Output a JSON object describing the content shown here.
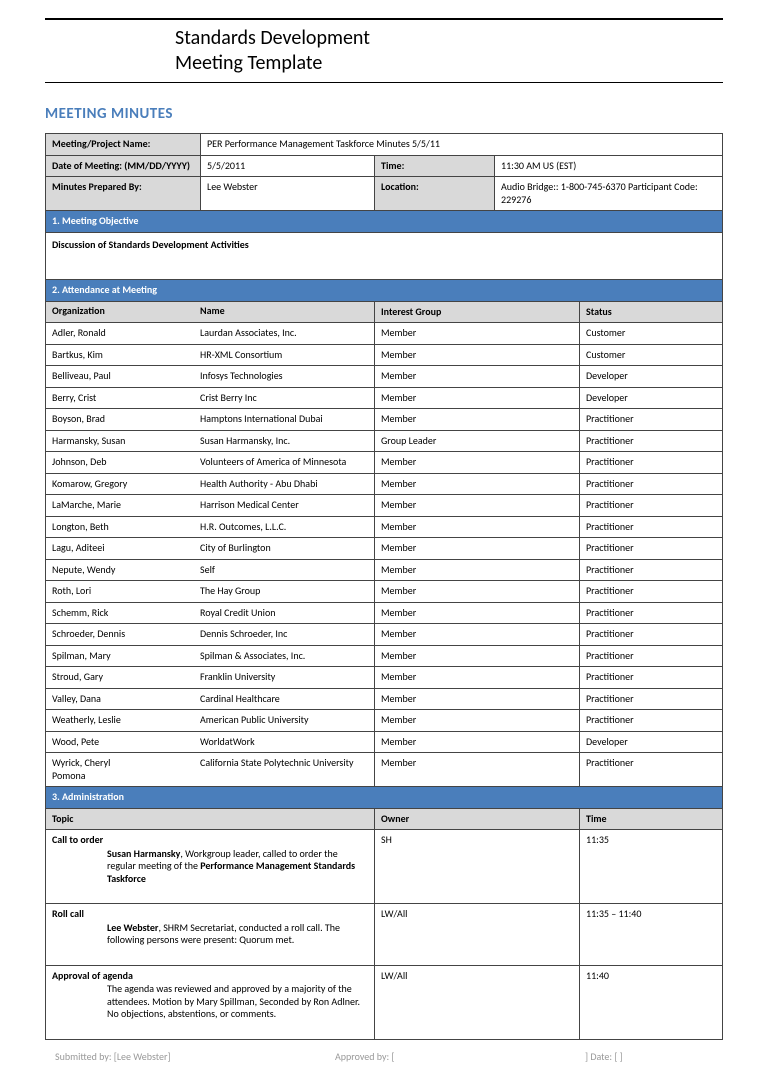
{
  "doc": {
    "title_line1": "Standards Development",
    "title_line2": "Meeting Template",
    "section_title": "MEETING MINUTES"
  },
  "info": {
    "meeting_name_label": "Meeting/Project Name:",
    "meeting_name": "PER Performance Management Taskforce Minutes 5/5/11",
    "date_label": "Date of Meeting: (MM/DD/YYYY)",
    "date": "5/5/2011",
    "time_label": "Time:",
    "time": "11:30 AM US (EST)",
    "prepared_label": "Minutes Prepared By:",
    "prepared": "Lee Webster",
    "location_label": "Location:",
    "location": "Audio Bridge:: 1-800-745-6370 Participant Code: 229276"
  },
  "sections": {
    "objective_title": "1. Meeting Objective",
    "objective_text": "Discussion of Standards Development Activities",
    "attendance_title": "2. Attendance at Meeting",
    "admin_title": "3. Administration"
  },
  "attendance": {
    "headers": {
      "org": "Organization",
      "name": "Name",
      "ig": "Interest Group",
      "status": "Status"
    },
    "rows": [
      {
        "org": "Adler, Ronald",
        "name": "Laurdan Associates, Inc.",
        "ig": "Member",
        "status": "Customer"
      },
      {
        "org": "Bartkus, Kim",
        "name": "HR-XML Consortium",
        "ig": "Member",
        "status": "Customer"
      },
      {
        "org": "Belliveau, Paul",
        "name": "Infosys Technologies",
        "ig": "Member",
        "status": "Developer"
      },
      {
        "org": "Berry, Crist",
        "name": "Crist Berry Inc",
        "ig": "Member",
        "status": "Developer"
      },
      {
        "org": "Boyson, Brad",
        "name": "Hamptons International Dubai",
        "ig": "Member",
        "status": "Practitioner"
      },
      {
        "org": "Harmansky, Susan",
        "name": "Susan Harmansky, Inc.",
        "ig": "Group Leader",
        "status": "Practitioner"
      },
      {
        "org": "Johnson, Deb",
        "name": "Volunteers of America of Minnesota",
        "ig": "Member",
        "status": "Practitioner"
      },
      {
        "org": "Komarow, Gregory",
        "name": "Health Authority - Abu Dhabi",
        "ig": "Member",
        "status": "Practitioner"
      },
      {
        "org": "LaMarche, Marie",
        "name": "Harrison Medical Center",
        "ig": "Member",
        "status": "Practitioner"
      },
      {
        "org": "Longton, Beth",
        "name": "H.R. Outcomes, L.L.C.",
        "ig": "Member",
        "status": "Practitioner"
      },
      {
        "org": "Lagu, Aditeei",
        "name": "City of Burlington",
        "ig": "Member",
        "status": "Practitioner"
      },
      {
        "org": "Nepute, Wendy",
        "name": "Self",
        "ig": "Member",
        "status": "Practitioner"
      },
      {
        "org": "Roth, Lori",
        "name": "The Hay Group",
        "ig": "Member",
        "status": "Practitioner"
      },
      {
        "org": "Schemm, Rick",
        "name": "Royal Credit Union",
        "ig": "Member",
        "status": "Practitioner"
      },
      {
        "org": "Schroeder, Dennis",
        "name": "Dennis Schroeder, Inc",
        "ig": "Member",
        "status": "Practitioner"
      },
      {
        "org": "Spilman, Mary",
        "name": "Spilman & Associates, Inc.",
        "ig": "Member",
        "status": "Practitioner"
      },
      {
        "org": "Stroud, Gary",
        "name": "Franklin University",
        "ig": "Member",
        "status": "Practitioner"
      },
      {
        "org": "Valley, Dana",
        "name": "Cardinal Healthcare",
        "ig": "Member",
        "status": "Practitioner"
      },
      {
        "org": "Weatherly, Leslie",
        "name": "American Public University",
        "ig": "Member",
        "status": "Practitioner"
      },
      {
        "org": "Wood, Pete",
        "name": "WorldatWork",
        "ig": "Member",
        "status": "Developer"
      },
      {
        "org": "Wyrick, Cheryl",
        "name": "California State Polytechnic University Pomona",
        "ig": "Member",
        "status": "Practitioner"
      }
    ]
  },
  "admin": {
    "headers": {
      "topic": "Topic",
      "owner": "Owner",
      "time": "Time"
    },
    "rows": [
      {
        "title": "Call to order",
        "desc_lead": "Susan Harmansky",
        "desc_rest": ", Workgroup leader, called to order the regular meeting of the ",
        "desc_bold2": "Performance Management Standards Taskforce",
        "owner": "SH",
        "time": "11:35"
      },
      {
        "title": "Roll call",
        "desc_lead": "Lee Webster",
        "desc_rest": ", SHRM Secretariat, conducted a roll call. The following persons were present: Quorum met.",
        "desc_bold2": "",
        "owner": "LW/All",
        "time": "11:35 – 11:40"
      },
      {
        "title": "Approval of agenda",
        "desc_lead": "",
        "desc_rest": "The agenda was reviewed and approved by a majority of the attendees. Motion by Mary Spillman, Seconded by Ron Adlner. No objections, abstentions, or comments.",
        "desc_bold2": "",
        "owner": "LW/All",
        "time": "11:40"
      }
    ]
  },
  "footer": {
    "submitted": "Submitted by: [Lee Webster]",
    "approved": "Approved by: [",
    "date": "]  Date: [            ]"
  }
}
